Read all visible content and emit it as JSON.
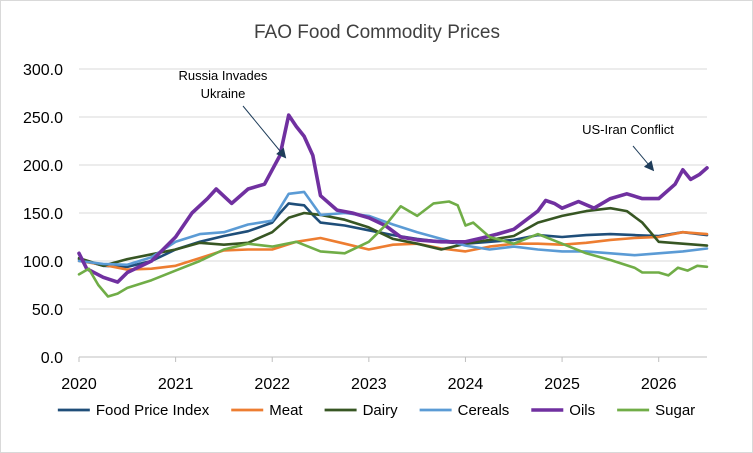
{
  "chart_data": {
    "type": "line",
    "title": "FAO Food Commodity Prices",
    "xlabel": "",
    "ylabel": "",
    "ylim": [
      0,
      300
    ],
    "xlim": [
      2020,
      2026.5
    ],
    "x_ticks": [
      "2020",
      "2021",
      "2022",
      "2023",
      "2024",
      "2025",
      "2026"
    ],
    "y_ticks": [
      "0.0",
      "50.0",
      "100.0",
      "150.0",
      "200.0",
      "250.0",
      "300.0"
    ],
    "grid": true,
    "legend_position": "bottom",
    "annotations": [
      {
        "lines": [
          "Russia Invades",
          "Ukraine"
        ],
        "x": 2022.08,
        "y": 200
      },
      {
        "lines": [
          "US-Iran Conflict"
        ],
        "x": 2025.95,
        "y": 193
      }
    ],
    "series": [
      {
        "name": "Food Price Index",
        "color": "#1f4e79",
        "x": [
          2020,
          2020.25,
          2020.5,
          2020.75,
          2021,
          2021.25,
          2021.5,
          2021.75,
          2022,
          2022.08,
          2022.17,
          2022.25,
          2022.33,
          2022.42,
          2022.5,
          2022.75,
          2023,
          2023.25,
          2023.5,
          2023.75,
          2024,
          2024.25,
          2024.5,
          2024.75,
          2025,
          2025.25,
          2025.5,
          2025.75,
          2026,
          2026.25,
          2026.5
        ],
        "values": [
          102,
          95,
          94,
          100,
          112,
          120,
          126,
          131,
          140,
          150,
          160,
          159,
          158,
          148,
          140,
          137,
          132,
          127,
          123,
          120,
          118,
          120,
          122,
          127,
          125,
          127,
          128,
          127,
          126,
          130,
          127
        ]
      },
      {
        "name": "Meat",
        "color": "#ed7d31",
        "x": [
          2020,
          2020.25,
          2020.5,
          2020.75,
          2021,
          2021.25,
          2021.5,
          2021.75,
          2022,
          2022.25,
          2022.5,
          2022.75,
          2023,
          2023.25,
          2023.5,
          2023.75,
          2024,
          2024.25,
          2024.5,
          2024.75,
          2025,
          2025.25,
          2025.5,
          2025.75,
          2026,
          2026.25,
          2026.5
        ],
        "values": [
          100,
          96,
          91,
          92,
          95,
          103,
          111,
          112,
          112,
          120,
          124,
          118,
          112,
          117,
          118,
          113,
          110,
          115,
          118,
          118,
          117,
          119,
          122,
          124,
          125,
          130,
          128
        ]
      },
      {
        "name": "Dairy",
        "color": "#375623",
        "x": [
          2020,
          2020.25,
          2020.5,
          2020.75,
          2021,
          2021.25,
          2021.5,
          2021.75,
          2022,
          2022.17,
          2022.33,
          2022.5,
          2022.75,
          2023,
          2023.25,
          2023.5,
          2023.75,
          2024,
          2024.25,
          2024.5,
          2024.75,
          2025,
          2025.25,
          2025.5,
          2025.67,
          2025.83,
          2026,
          2026.25,
          2026.5
        ],
        "values": [
          103,
          95,
          102,
          107,
          112,
          119,
          117,
          119,
          130,
          145,
          150,
          148,
          143,
          135,
          123,
          118,
          112,
          118,
          122,
          126,
          140,
          147,
          152,
          155,
          152,
          140,
          120,
          118,
          116
        ]
      },
      {
        "name": "Cereals",
        "color": "#5b9bd5",
        "x": [
          2020,
          2020.25,
          2020.5,
          2020.75,
          2021,
          2021.25,
          2021.5,
          2021.75,
          2022,
          2022.17,
          2022.33,
          2022.5,
          2022.75,
          2023,
          2023.25,
          2023.5,
          2023.75,
          2024,
          2024.25,
          2024.5,
          2024.75,
          2025,
          2025.25,
          2025.5,
          2025.75,
          2026,
          2026.25,
          2026.5
        ],
        "values": [
          100,
          97,
          96,
          104,
          120,
          128,
          130,
          138,
          142,
          170,
          172,
          148,
          150,
          147,
          138,
          130,
          123,
          116,
          112,
          115,
          112,
          110,
          110,
          108,
          106,
          108,
          110,
          113
        ]
      },
      {
        "name": "Oils",
        "color": "#7030a0",
        "x": [
          2020,
          2020.08,
          2020.25,
          2020.4,
          2020.5,
          2020.75,
          2021,
          2021.17,
          2021.33,
          2021.42,
          2021.58,
          2021.75,
          2021.92,
          2022,
          2022.08,
          2022.17,
          2022.25,
          2022.33,
          2022.42,
          2022.5,
          2022.67,
          2022.83,
          2023,
          2023.17,
          2023.33,
          2023.5,
          2023.75,
          2024,
          2024.17,
          2024.33,
          2024.5,
          2024.75,
          2024.83,
          2024.92,
          2025,
          2025.17,
          2025.33,
          2025.5,
          2025.67,
          2025.83,
          2026,
          2026.17,
          2026.25,
          2026.33,
          2026.42,
          2026.5
        ],
        "values": [
          108,
          92,
          83,
          78,
          88,
          100,
          125,
          150,
          165,
          175,
          160,
          175,
          180,
          195,
          210,
          252,
          240,
          230,
          210,
          168,
          153,
          150,
          145,
          137,
          125,
          122,
          120,
          120,
          124,
          128,
          133,
          152,
          163,
          160,
          155,
          162,
          155,
          165,
          170,
          165,
          165,
          180,
          195,
          185,
          190,
          197
        ]
      },
      {
        "name": "Sugar",
        "color": "#70ad47",
        "x": [
          2020,
          2020.1,
          2020.2,
          2020.3,
          2020.4,
          2020.5,
          2020.75,
          2021,
          2021.25,
          2021.5,
          2021.75,
          2022,
          2022.25,
          2022.5,
          2022.75,
          2023,
          2023.17,
          2023.33,
          2023.5,
          2023.67,
          2023.83,
          2023.92,
          2024,
          2024.08,
          2024.25,
          2024.5,
          2024.75,
          2025,
          2025.25,
          2025.5,
          2025.75,
          2025.83,
          2026,
          2026.1,
          2026.2,
          2026.3,
          2026.4,
          2026.5
        ],
        "values": [
          86,
          92,
          75,
          63,
          66,
          72,
          80,
          90,
          100,
          112,
          118,
          115,
          120,
          110,
          108,
          120,
          137,
          157,
          147,
          160,
          162,
          158,
          137,
          140,
          125,
          118,
          128,
          118,
          108,
          101,
          93,
          88,
          88,
          85,
          93,
          90,
          95,
          94
        ]
      }
    ]
  }
}
